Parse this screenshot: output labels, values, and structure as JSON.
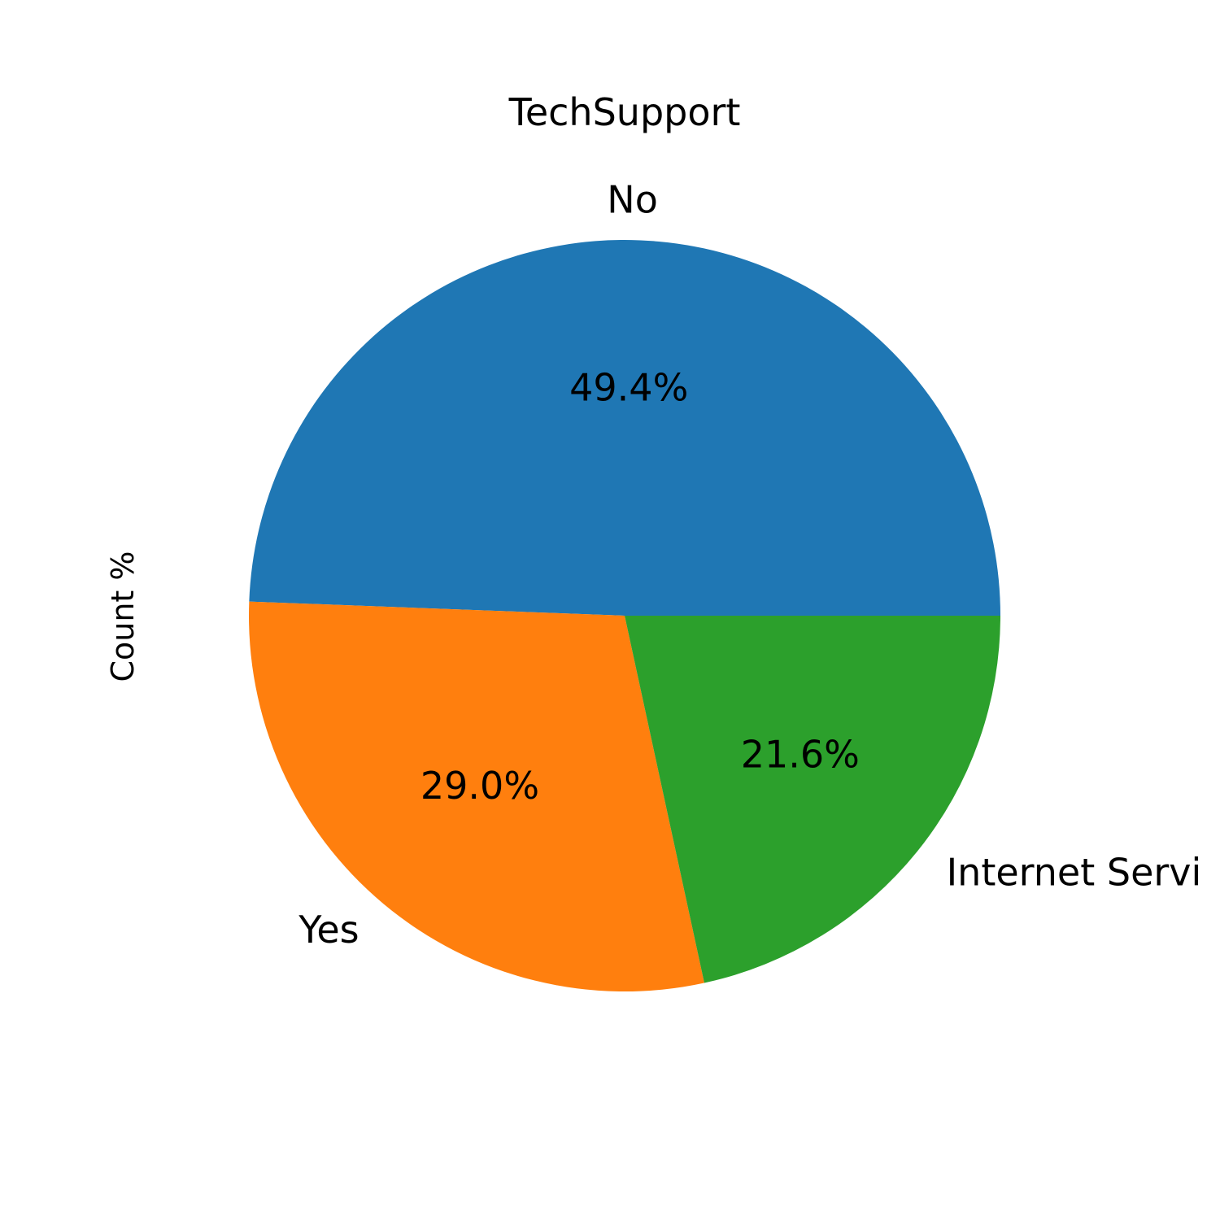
{
  "chart_data": {
    "type": "pie",
    "title": "TechSupport",
    "ylabel": "Count %",
    "start_angle_deg": 0,
    "direction": "counterclockwise",
    "slices": [
      {
        "label": "No",
        "value": 49.4,
        "display_pct": "49.4%",
        "color": "#1f77b4"
      },
      {
        "label": "Yes",
        "value": 29.0,
        "display_pct": "29.0%",
        "color": "#ff7f0e"
      },
      {
        "label": "Internet Servi",
        "value": 21.6,
        "display_pct": "21.6%",
        "color": "#2ca02c"
      }
    ]
  }
}
